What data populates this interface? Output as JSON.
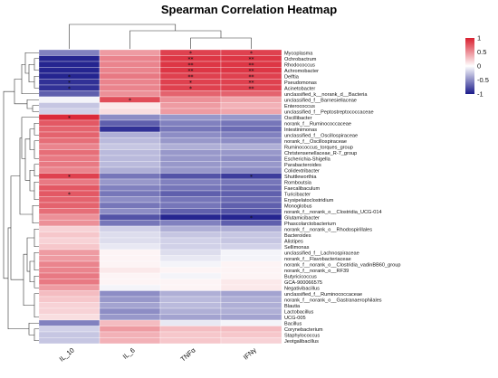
{
  "chart_data": {
    "type": "heatmap",
    "title": "Spearman Correlation Heatmap",
    "columns": [
      "IL_10",
      "IL_6",
      "TNFα",
      "IFNγ"
    ],
    "rows": [
      "Mycoplasma",
      "Ochrobactrum",
      "Rhodococcus",
      "Achromobacter",
      "Delftia",
      "Pseudomonas",
      "Acinetobacter",
      "unclassified_k__norank_d__Bacteria",
      "unclassified_f__Barnesiellaceae",
      "Enterococcus",
      "unclassified_f__Peptostreptococcaceae",
      "Oscillibacter",
      "norank_f__Ruminococcaceae",
      "Intestinimonas",
      "unclassified_f__Oscillospiraceae",
      "norank_f__Oscillospiraceae",
      "Ruminococcus_torques_group",
      "Christensenellaceae_R-7_group",
      "Escherichia-Shigella",
      "Parabacteroides",
      "Colidextribacter",
      "Shuttleworthia",
      "Romboutsia",
      "Faecalibaculum",
      "Turicibacter",
      "Erysipelatoclostridium",
      "Monoglobus",
      "norank_f__norank_o__Clostridia_UCG-014",
      "Glutamicibacter",
      "Phascolarctobacterium",
      "norank_f__norank_o__Rhodospirillales",
      "Bacteroides",
      "Alistipes",
      "Sellimonas",
      "unclassified_f__Lachnospiraceae",
      "norank_f__Flavobacteriaceae",
      "norank_f__norank_o__Clostridia_vadinBB60_group",
      "norank_f__norank_o__RF39",
      "Butyricicoccus",
      "GCA-900066575",
      "Negativibacillus",
      "unclassified_f__Ruminococcaceae",
      "norank_f__norank_o__Gastranaerophilales",
      "Blautia",
      "Lactobacillus",
      "UCG-005",
      "Bacillus",
      "Corynebacterium",
      "Staphylococcus",
      "Jeotgalibacillus"
    ],
    "values": [
      [
        -0.55,
        0.45,
        0.85,
        0.85
      ],
      [
        -0.95,
        0.55,
        0.9,
        0.9
      ],
      [
        -0.95,
        0.55,
        0.9,
        0.9
      ],
      [
        -0.95,
        0.55,
        0.9,
        0.9
      ],
      [
        -0.95,
        0.6,
        0.85,
        0.85
      ],
      [
        -0.9,
        0.55,
        0.85,
        0.85
      ],
      [
        -0.9,
        0.55,
        0.85,
        0.85
      ],
      [
        -0.7,
        0.5,
        0.7,
        0.7
      ],
      [
        -0.05,
        0.8,
        0.5,
        0.4
      ],
      [
        -0.25,
        0.1,
        0.45,
        0.35
      ],
      [
        -0.2,
        0.15,
        0.45,
        0.4
      ],
      [
        0.95,
        -0.5,
        -0.45,
        -0.45
      ],
      [
        0.75,
        -0.7,
        -0.55,
        -0.6
      ],
      [
        0.7,
        -0.9,
        -0.6,
        -0.65
      ],
      [
        0.7,
        -0.35,
        -0.5,
        -0.55
      ],
      [
        0.65,
        -0.3,
        -0.45,
        -0.5
      ],
      [
        0.55,
        -0.25,
        -0.35,
        -0.35
      ],
      [
        0.65,
        -0.3,
        -0.45,
        -0.45
      ],
      [
        0.6,
        -0.3,
        -0.45,
        -0.5
      ],
      [
        0.6,
        -0.3,
        -0.45,
        -0.45
      ],
      [
        0.55,
        -0.35,
        -0.45,
        -0.5
      ],
      [
        0.85,
        -0.6,
        -0.75,
        -0.85
      ],
      [
        0.6,
        -0.45,
        -0.55,
        -0.6
      ],
      [
        0.75,
        -0.55,
        -0.6,
        -0.65
      ],
      [
        0.75,
        -0.6,
        -0.7,
        -0.7
      ],
      [
        0.7,
        -0.5,
        -0.6,
        -0.65
      ],
      [
        0.7,
        -0.6,
        -0.6,
        -0.7
      ],
      [
        0.65,
        -0.5,
        -0.7,
        -0.75
      ],
      [
        0.5,
        -0.75,
        -0.95,
        -0.95
      ],
      [
        0.5,
        -0.6,
        -0.55,
        -0.7
      ],
      [
        0.2,
        -0.2,
        -0.35,
        -0.35
      ],
      [
        0.25,
        -0.15,
        -0.25,
        -0.25
      ],
      [
        0.2,
        -0.15,
        -0.2,
        -0.25
      ],
      [
        0.25,
        -0.1,
        -0.2,
        -0.2
      ],
      [
        0.45,
        0.05,
        -0.15,
        -0.05
      ],
      [
        0.45,
        0.05,
        -0.1,
        -0.05
      ],
      [
        0.55,
        0.05,
        -0.05,
        0.05
      ],
      [
        0.55,
        0.1,
        0.05,
        0.05
      ],
      [
        0.6,
        0.05,
        -0.05,
        0.05
      ],
      [
        0.6,
        0.05,
        0.05,
        0.1
      ],
      [
        0.45,
        -0.05,
        0.05,
        0.1
      ],
      [
        0.3,
        -0.5,
        -0.35,
        -0.4
      ],
      [
        0.25,
        -0.45,
        -0.3,
        -0.35
      ],
      [
        0.2,
        -0.4,
        -0.3,
        -0.35
      ],
      [
        0.2,
        -0.5,
        -0.35,
        -0.35
      ],
      [
        0.15,
        -0.45,
        -0.4,
        -0.4
      ],
      [
        -0.55,
        0.3,
        -0.1,
        -0.05
      ],
      [
        -0.2,
        0.45,
        0.3,
        0.3
      ],
      [
        -0.25,
        0.35,
        0.25,
        0.25
      ],
      [
        -0.25,
        0.35,
        0.25,
        0.2
      ]
    ],
    "stars": [
      [
        "",
        "",
        "*",
        "*"
      ],
      [
        "",
        "",
        "**",
        "**"
      ],
      [
        "",
        "",
        "**",
        "**"
      ],
      [
        "",
        "",
        "**",
        "**"
      ],
      [
        "*",
        "",
        "**",
        "**"
      ],
      [
        "*",
        "",
        "*",
        "**"
      ],
      [
        "*",
        "",
        "*",
        "**"
      ],
      [
        "",
        "",
        "",
        ""
      ],
      [
        "",
        "*",
        "",
        ""
      ],
      [
        "",
        "",
        "",
        ""
      ],
      [
        "",
        "",
        "",
        ""
      ],
      [
        "*",
        "",
        "",
        ""
      ],
      [
        "",
        "",
        "",
        ""
      ],
      [
        "",
        "",
        "",
        ""
      ],
      [
        "",
        "",
        "",
        ""
      ],
      [
        "",
        "",
        "",
        ""
      ],
      [
        "",
        "",
        "",
        ""
      ],
      [
        "",
        "",
        "",
        ""
      ],
      [
        "",
        "",
        "",
        ""
      ],
      [
        "",
        "",
        "",
        ""
      ],
      [
        "",
        "",
        "",
        ""
      ],
      [
        "*",
        "",
        "",
        "*"
      ],
      [
        "",
        "",
        "",
        ""
      ],
      [
        "",
        "",
        "",
        ""
      ],
      [
        "*",
        "",
        "",
        ""
      ],
      [
        "",
        "",
        "",
        ""
      ],
      [
        "",
        "",
        "",
        ""
      ],
      [
        "",
        "",
        "",
        ""
      ],
      [
        "",
        "",
        "",
        "*"
      ],
      [
        "",
        "",
        "",
        ""
      ],
      [
        "",
        "",
        "",
        ""
      ],
      [
        "",
        "",
        "",
        ""
      ],
      [
        "",
        "",
        "",
        ""
      ],
      [
        "",
        "",
        "",
        ""
      ],
      [
        "",
        "",
        "",
        ""
      ],
      [
        "",
        "",
        "",
        ""
      ],
      [
        "",
        "",
        "",
        ""
      ],
      [
        "",
        "",
        "",
        ""
      ],
      [
        "",
        "",
        "",
        ""
      ],
      [
        "",
        "",
        "",
        ""
      ],
      [
        "",
        "",
        "",
        ""
      ],
      [
        "",
        "",
        "",
        ""
      ],
      [
        "",
        "",
        "",
        ""
      ],
      [
        "",
        "",
        "",
        ""
      ],
      [
        "",
        "",
        "",
        ""
      ],
      [
        "",
        "",
        "",
        ""
      ],
      [
        "",
        "",
        "",
        ""
      ],
      [
        "",
        "",
        "",
        ""
      ],
      [
        "",
        "",
        "",
        ""
      ],
      [
        "",
        "",
        "",
        ""
      ]
    ],
    "legend": {
      "placement": "top-right",
      "ticks": [
        1,
        0.5,
        0,
        -0.5,
        -1
      ],
      "tick_labels": [
        "1",
        "0.5",
        "0",
        "-0.5",
        "-1"
      ],
      "colors": {
        "low": "#1a1a8a",
        "mid": "#ffffff",
        "high": "#d92030"
      }
    },
    "grid": false
  }
}
